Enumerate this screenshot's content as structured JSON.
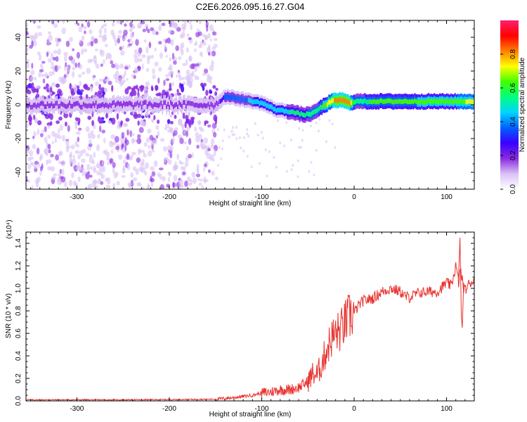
{
  "title": "C2E6.2026.095.16.27.G04",
  "chart_data": [
    {
      "type": "heatmap",
      "xlabel": "Height of straight line (km)",
      "ylabel": "Frequency (Hz)",
      "xlim": [
        -355,
        130
      ],
      "ylim": [
        -50,
        50
      ],
      "xticks": [
        -300,
        -200,
        -100,
        0,
        100
      ],
      "yticks": [
        -40,
        -20,
        0,
        20,
        40
      ],
      "colorbar": {
        "label": "Normalized spectral amplitude",
        "range": [
          0.0,
          1.0
        ],
        "ticks": [
          "0.0",
          "0.2",
          "0.4",
          "0.6",
          "0.8"
        ],
        "colors": [
          "#ffffff",
          "#d9c2f5",
          "#8a2be2",
          "#3a00ff",
          "#0060ff",
          "#00d5ff",
          "#00ff80",
          "#40ff00",
          "#ffff00",
          "#ff8000",
          "#ff0000",
          "#ff2070"
        ]
      },
      "ridge": {
        "x": [
          -355,
          -300,
          -250,
          -200,
          -150,
          -140,
          -120,
          -100,
          -85,
          -70,
          -55,
          -45,
          -35,
          -25,
          -15,
          -5,
          0,
          20,
          60,
          100,
          130
        ],
        "frequency": [
          0,
          0,
          0,
          0,
          0,
          5,
          3,
          1,
          -3,
          -4,
          -6,
          -5,
          -1,
          2,
          3,
          1,
          2,
          2,
          2,
          2,
          2
        ],
        "amplitude": [
          0.15,
          0.15,
          0.15,
          0.15,
          0.15,
          0.35,
          0.4,
          0.45,
          0.45,
          0.5,
          0.5,
          0.55,
          0.6,
          0.75,
          0.85,
          0.8,
          0.55,
          0.6,
          0.6,
          0.65,
          0.7
        ]
      }
    },
    {
      "type": "line",
      "xlabel": "Height of straight line (km)",
      "ylabel": "SNR (10 * v/v)",
      "yscale_label": "(x10⁴)",
      "xlim": [
        -355,
        130
      ],
      "ylim": [
        0,
        1.5
      ],
      "xticks": [
        -300,
        -200,
        -100,
        0,
        100
      ],
      "yticks": [
        "0.0",
        "0.2",
        "0.4",
        "0.6",
        "0.8",
        "1.0",
        "1.2",
        "1.4"
      ],
      "color": "#e8332f",
      "series": [
        {
          "x": [
            -355,
            -300,
            -250,
            -200,
            -150,
            -130,
            -110,
            -100,
            -90,
            -80,
            -70,
            -60,
            -50,
            -45,
            -40,
            -35,
            -30,
            -25,
            -20,
            -15,
            -10,
            -5,
            0,
            5,
            10,
            20,
            30,
            40,
            50,
            55,
            60,
            70,
            80,
            90,
            100,
            105,
            110,
            113,
            115,
            118,
            120,
            125,
            130
          ],
          "y": [
            0.01,
            0.01,
            0.01,
            0.012,
            0.015,
            0.03,
            0.05,
            0.07,
            0.08,
            0.1,
            0.1,
            0.12,
            0.17,
            0.24,
            0.23,
            0.33,
            0.45,
            0.55,
            0.6,
            0.62,
            0.69,
            0.75,
            0.78,
            0.85,
            0.89,
            0.91,
            0.97,
            1.0,
            0.97,
            0.93,
            0.92,
            0.96,
            0.97,
            0.97,
            1.05,
            1.02,
            1.2,
            1.05,
            1.17,
            1.02,
            0.98,
            1.05,
            1.07
          ]
        }
      ]
    }
  ]
}
